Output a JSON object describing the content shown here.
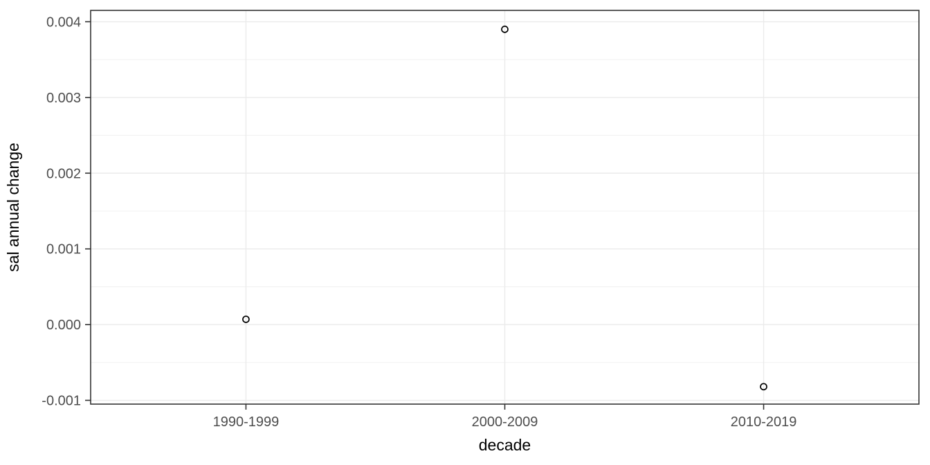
{
  "chart_data": {
    "type": "scatter",
    "title": "",
    "xlabel": "decade",
    "ylabel": "sal annual change",
    "categories": [
      "1990-1999",
      "2000-2009",
      "2010-2019"
    ],
    "values": [
      7e-05,
      0.0039,
      -0.00082
    ],
    "ylim": [
      -0.00105,
      0.00415
    ],
    "yticks": [
      -0.001,
      0.0,
      0.001,
      0.002,
      0.003,
      0.004
    ],
    "ytick_labels": [
      "-0.001",
      "0.000",
      "0.001",
      "0.002",
      "0.003",
      "0.004"
    ],
    "yminor": [
      -0.0005,
      0.0005,
      0.0015,
      0.0025,
      0.0035
    ],
    "grid": "major-and-minor-horizontal, major-vertical-at-categories",
    "legend": "none",
    "point_style": {
      "shape": "open-circle",
      "radius": 4.5,
      "stroke_width": 1.7
    },
    "colors": {
      "background": "#ffffff",
      "panel_background": "#ffffff",
      "grid_major": "#ebebeb",
      "grid_minor": "#f0f0f0",
      "panel_border": "#333333",
      "tick_mark": "#333333",
      "tick_label": "#4d4d4d",
      "axis_title": "#000000",
      "point_stroke": "#000000"
    }
  }
}
